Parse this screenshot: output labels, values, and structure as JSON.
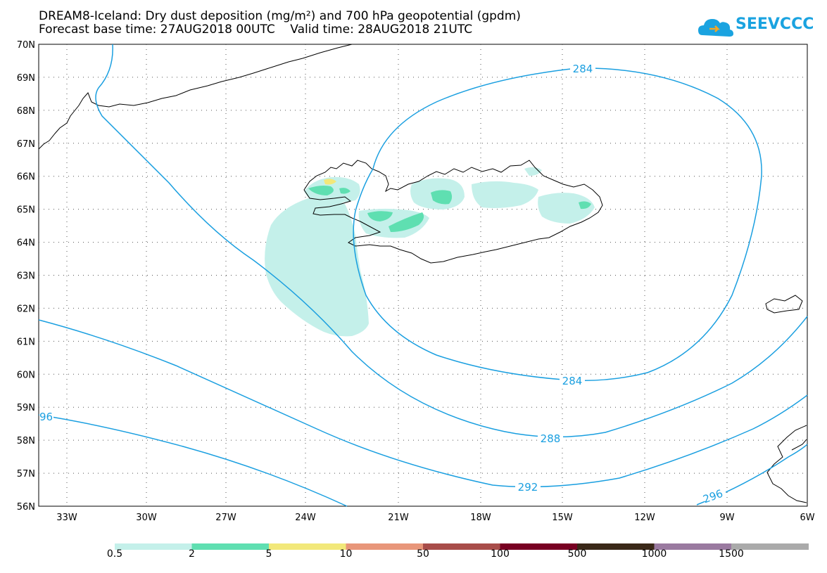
{
  "title_line1": "DREAM8-Iceland: Dry dust deposition (mg/m²) and 700 hPa geopotential (gpdm)",
  "title_line2": "Forecast base time: 27AUG2018 00UTC    Valid time: 28AUG2018 21UTC",
  "logo_text": "SEEVCCC",
  "lat_labels": [
    "70N",
    "69N",
    "68N",
    "67N",
    "66N",
    "65N",
    "64N",
    "63N",
    "62N",
    "61N",
    "60N",
    "59N",
    "58N",
    "57N",
    "56N"
  ],
  "lon_labels": [
    "33W",
    "30W",
    "27W",
    "24W",
    "21W",
    "18W",
    "15W",
    "12W",
    "9W",
    "6W"
  ],
  "contour_labels": [
    {
      "text": "284"
    },
    {
      "text": "284"
    },
    {
      "text": "288"
    },
    {
      "text": "292"
    },
    {
      "text": "296"
    },
    {
      "text": "96"
    }
  ],
  "legend": {
    "colors": [
      "#c4f0ea",
      "#5fdfb1",
      "#f2e87a",
      "#e8967a",
      "#a84d4a",
      "#780022",
      "#3a2818",
      "#9a7aa0",
      "#aaaaaa"
    ],
    "labels": [
      "0.5",
      "2",
      "5",
      "10",
      "50",
      "100",
      "500",
      "1000",
      "1500"
    ]
  },
  "colors": {
    "contour": "#1a9fe0",
    "coast": "#000000"
  }
}
